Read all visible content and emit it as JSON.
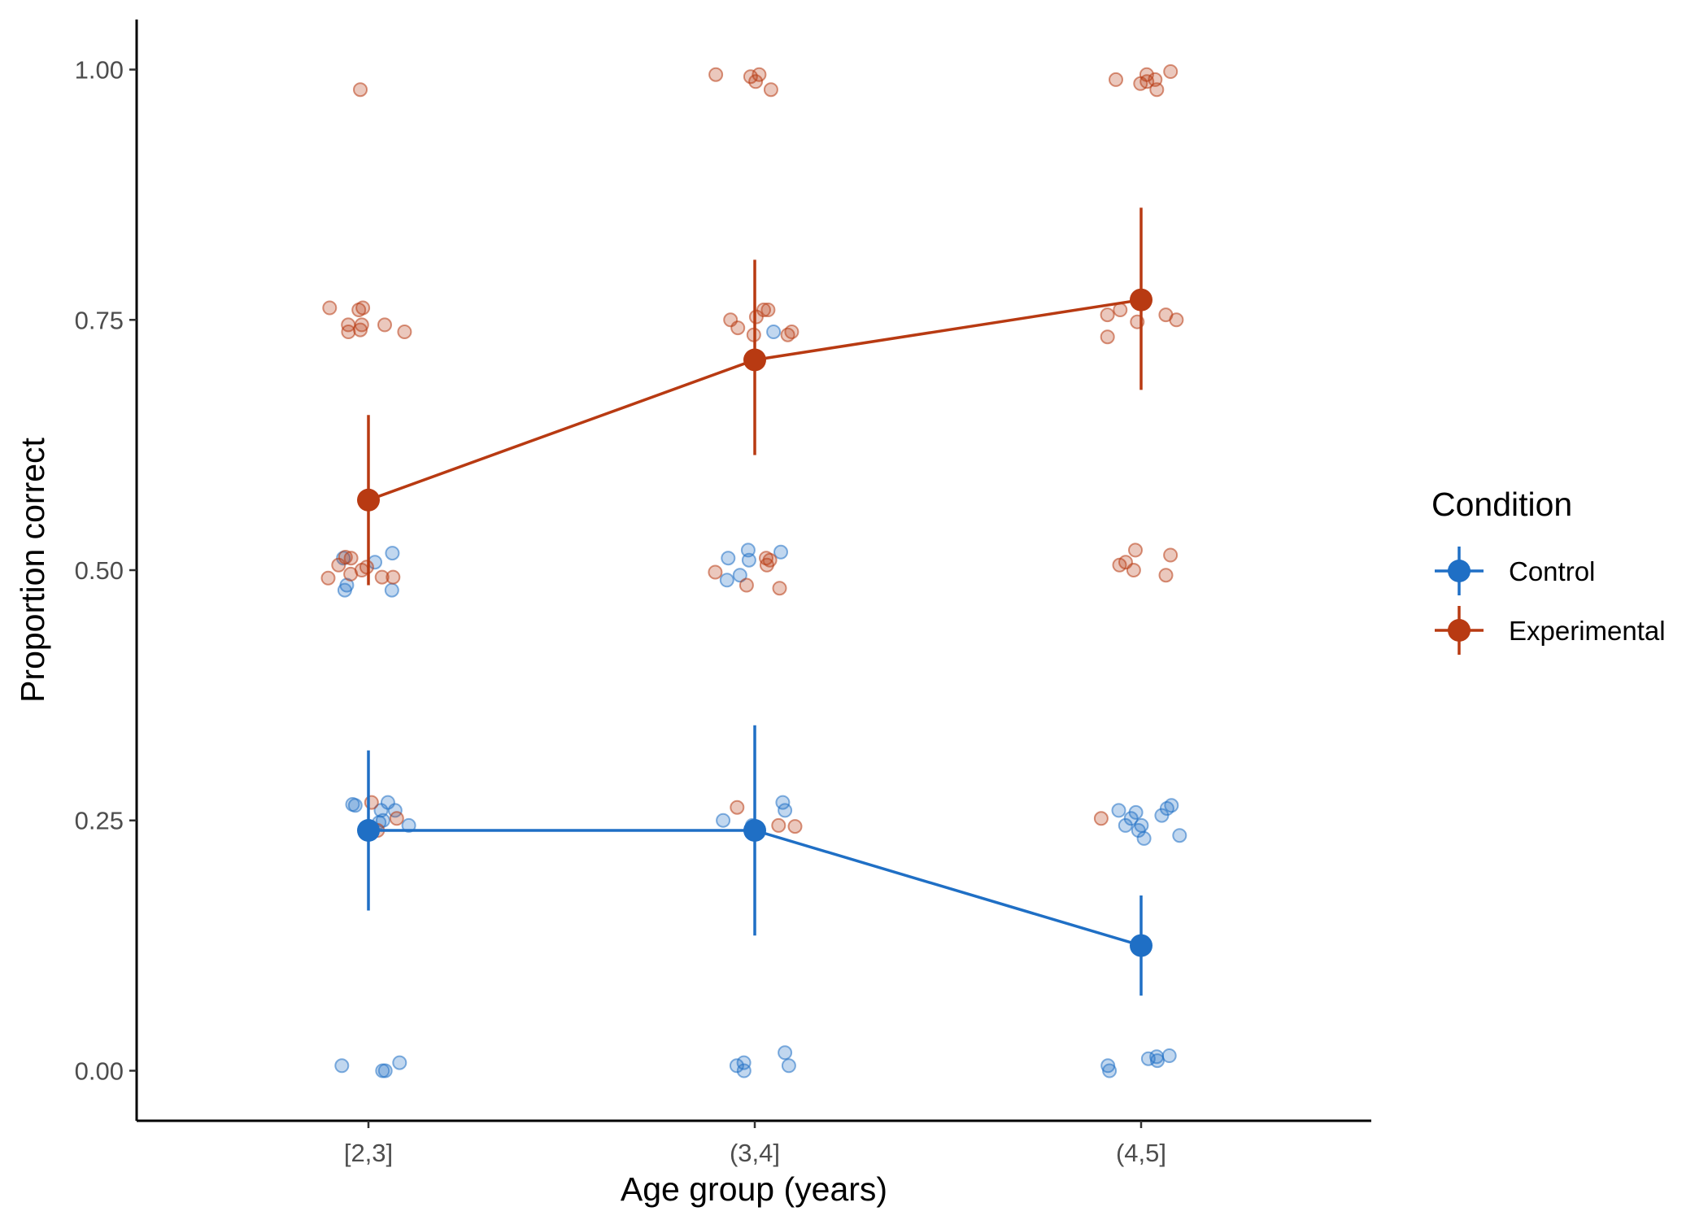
{
  "chart_data": {
    "type": "line",
    "xlabel": "Age group (years)",
    "ylabel": "Proportion correct",
    "categories": [
      "[2,3]",
      "(3,4]",
      "(4,5]"
    ],
    "ylim": [
      -0.05,
      1.05
    ],
    "yticks": [
      0.0,
      0.25,
      0.5,
      0.75,
      1.0
    ],
    "ytick_labels": [
      "0.00",
      "0.25",
      "0.50",
      "0.75",
      "1.00"
    ],
    "grid": false,
    "legend": {
      "title": "Condition",
      "placement": "right"
    },
    "series": [
      {
        "name": "Control",
        "color": "#1f6fc5",
        "mean": [
          0.24,
          0.24,
          0.125
        ],
        "lower": [
          0.16,
          0.135,
          0.075
        ],
        "upper": [
          0.32,
          0.345,
          0.175
        ],
        "points": [
          [
            [
              0.0,
              0.26
            ],
            [
              0.0,
              0.266
            ],
            [
              0.0,
              0.248
            ],
            [
              0.0,
              0.245
            ],
            [
              0.0,
              0.25
            ],
            [
              0.0,
              0.0
            ],
            [
              0.0,
              0.005
            ],
            [
              0.0,
              0.008
            ],
            [
              0.0,
              0.0
            ],
            [
              0.25,
              0.26
            ],
            [
              0.25,
              0.268
            ],
            [
              0.25,
              0.265
            ],
            [
              0.5,
              0.517
            ],
            [
              0.5,
              0.512
            ],
            [
              0.5,
              0.508
            ],
            [
              0.5,
              0.485
            ],
            [
              0.5,
              0.48
            ],
            [
              0.5,
              0.48
            ]
          ],
          [
            [
              0.25,
              0.26
            ],
            [
              0.25,
              0.268
            ],
            [
              0.25,
              0.25
            ],
            [
              0.25,
              0.245
            ],
            [
              0.75,
              0.738
            ],
            [
              0.0,
              0.008
            ],
            [
              0.0,
              0.005
            ],
            [
              0.0,
              0.0
            ],
            [
              0.0,
              0.005
            ],
            [
              0.0,
              0.018
            ],
            [
              0.5,
              0.52
            ],
            [
              0.5,
              0.51
            ],
            [
              0.5,
              0.518
            ],
            [
              0.5,
              0.512
            ],
            [
              0.5,
              0.49
            ],
            [
              0.5,
              0.495
            ]
          ],
          [
            [
              0.25,
              0.252
            ],
            [
              0.25,
              0.245
            ],
            [
              0.25,
              0.235
            ],
            [
              0.25,
              0.24
            ],
            [
              0.25,
              0.255
            ],
            [
              0.25,
              0.26
            ],
            [
              0.25,
              0.258
            ],
            [
              0.25,
              0.265
            ],
            [
              0.25,
              0.262
            ],
            [
              0.25,
              0.245
            ],
            [
              0.25,
              0.232
            ],
            [
              0.0,
              0.015
            ],
            [
              0.0,
              0.01
            ],
            [
              0.0,
              0.0
            ],
            [
              0.0,
              0.012
            ],
            [
              0.0,
              0.005
            ],
            [
              0.0,
              0.014
            ]
          ]
        ]
      },
      {
        "name": "Experimental",
        "color": "#b83a12",
        "mean": [
          0.57,
          0.71,
          0.77
        ],
        "lower": [
          0.485,
          0.615,
          0.68
        ],
        "upper": [
          0.655,
          0.81,
          0.862
        ],
        "points": [
          [
            [
              1.0,
              0.98
            ],
            [
              0.75,
              0.745
            ],
            [
              0.75,
              0.738
            ],
            [
              0.75,
              0.76
            ],
            [
              0.75,
              0.74
            ],
            [
              0.75,
              0.745
            ],
            [
              0.75,
              0.738
            ],
            [
              0.75,
              0.762
            ],
            [
              0.75,
              0.762
            ],
            [
              0.75,
              0.745
            ],
            [
              0.5,
              0.505
            ],
            [
              0.5,
              0.493
            ],
            [
              0.5,
              0.492
            ],
            [
              0.5,
              0.512
            ],
            [
              0.5,
              0.496
            ],
            [
              0.5,
              0.5
            ],
            [
              0.5,
              0.513
            ],
            [
              0.5,
              0.493
            ],
            [
              0.5,
              0.503
            ],
            [
              0.25,
              0.268
            ],
            [
              0.25,
              0.252
            ],
            [
              0.25,
              0.24
            ]
          ],
          [
            [
              1.0,
              0.98
            ],
            [
              1.0,
              0.995
            ],
            [
              1.0,
              0.995
            ],
            [
              1.0,
              0.993
            ],
            [
              1.0,
              0.988
            ],
            [
              0.75,
              0.76
            ],
            [
              0.75,
              0.742
            ],
            [
              0.75,
              0.735
            ],
            [
              0.75,
              0.738
            ],
            [
              0.75,
              0.75
            ],
            [
              0.75,
              0.753
            ],
            [
              0.75,
              0.735
            ],
            [
              0.75,
              0.76
            ],
            [
              0.5,
              0.498
            ],
            [
              0.5,
              0.512
            ],
            [
              0.5,
              0.505
            ],
            [
              0.5,
              0.485
            ],
            [
              0.5,
              0.482
            ],
            [
              0.5,
              0.51
            ],
            [
              0.25,
              0.263
            ],
            [
              0.25,
              0.245
            ],
            [
              0.25,
              0.244
            ]
          ],
          [
            [
              1.0,
              0.986
            ],
            [
              1.0,
              0.99
            ],
            [
              1.0,
              0.995
            ],
            [
              1.0,
              0.99
            ],
            [
              1.0,
              0.998
            ],
            [
              1.0,
              0.988
            ],
            [
              1.0,
              0.98
            ],
            [
              0.75,
              0.755
            ],
            [
              0.75,
              0.75
            ],
            [
              0.75,
              0.733
            ],
            [
              0.75,
              0.76
            ],
            [
              0.75,
              0.748
            ],
            [
              0.75,
              0.755
            ],
            [
              0.5,
              0.508
            ],
            [
              0.5,
              0.515
            ],
            [
              0.5,
              0.505
            ],
            [
              0.5,
              0.495
            ],
            [
              0.5,
              0.5
            ],
            [
              0.5,
              0.52
            ],
            [
              0.25,
              0.252
            ]
          ]
        ]
      }
    ]
  }
}
